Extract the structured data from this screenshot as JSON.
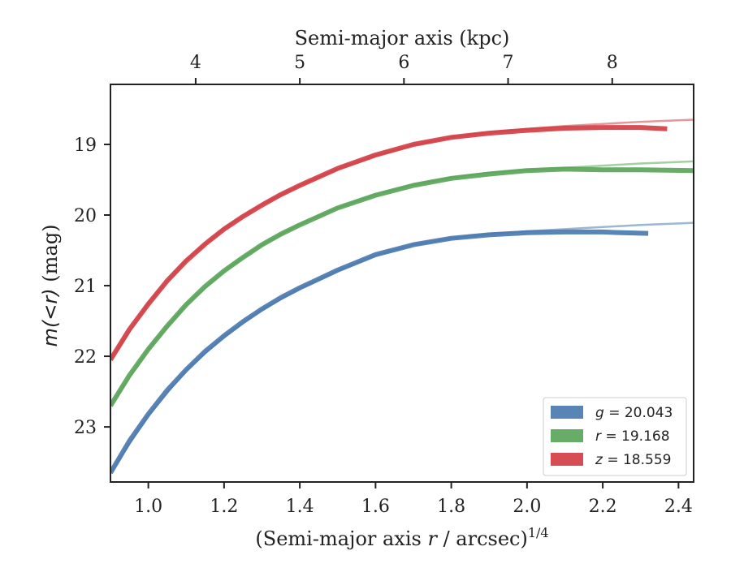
{
  "chart_data": {
    "type": "line",
    "title": "",
    "xlabel": "(Semi-major axis r / arcsec)^1/4",
    "xlabel_parts": {
      "pre": "(Semi-major axis ",
      "var": "r",
      "post": " / arcsec)",
      "exp": "1/4"
    },
    "ylabel": "m(<r) (mag)",
    "ylabel_parts": {
      "var": "m(<r)",
      "post": " (mag)"
    },
    "top_xlabel": "Semi-major axis (kpc)",
    "xlim": [
      0.9,
      2.44
    ],
    "ylim": [
      23.78,
      18.15
    ],
    "y_inverted": true,
    "x_ticks": [
      "1.0",
      "1.2",
      "1.4",
      "1.6",
      "1.8",
      "2.0",
      "2.2",
      "2.4"
    ],
    "y_ticks": [
      "19",
      "20",
      "21",
      "22",
      "23"
    ],
    "top_ticks": [
      "4",
      "5",
      "6",
      "7",
      "8"
    ],
    "top_tick_positions_x": [
      1.125,
      1.4,
      1.675,
      1.95,
      2.225
    ],
    "grid": false,
    "legend_position": "lower-right",
    "series": [
      {
        "name": "g = 20.043",
        "band": "g",
        "total": "20.043",
        "color": "#4a7ab0",
        "data_x": [
          0.9,
          0.95,
          1.0,
          1.05,
          1.1,
          1.15,
          1.2,
          1.25,
          1.3,
          1.35,
          1.4,
          1.5,
          1.6,
          1.7,
          1.8,
          1.9,
          2.0,
          2.1,
          2.2,
          2.25,
          2.32
        ],
        "data_y": [
          23.65,
          23.2,
          22.82,
          22.48,
          22.19,
          21.93,
          21.71,
          21.51,
          21.33,
          21.17,
          21.03,
          20.78,
          20.56,
          20.42,
          20.33,
          20.28,
          20.25,
          20.24,
          20.24,
          20.25,
          20.26
        ],
        "model_x": [
          0.9,
          1.0,
          1.1,
          1.2,
          1.3,
          1.4,
          1.5,
          1.6,
          1.7,
          1.8,
          1.9,
          2.0,
          2.1,
          2.2,
          2.3,
          2.44
        ],
        "model_y": [
          23.65,
          22.84,
          22.2,
          21.72,
          21.34,
          21.04,
          20.79,
          20.57,
          20.42,
          20.33,
          20.27,
          20.23,
          20.2,
          20.17,
          20.14,
          20.11
        ]
      },
      {
        "name": "r = 19.168",
        "band": "r",
        "total": "19.168",
        "color": "#5aa55a",
        "data_x": [
          0.9,
          0.95,
          1.0,
          1.05,
          1.1,
          1.15,
          1.2,
          1.25,
          1.3,
          1.35,
          1.4,
          1.5,
          1.6,
          1.7,
          1.8,
          1.9,
          2.0,
          2.1,
          2.2,
          2.3,
          2.44
        ],
        "data_y": [
          22.7,
          22.27,
          21.9,
          21.57,
          21.27,
          21.01,
          20.79,
          20.6,
          20.42,
          20.27,
          20.14,
          19.9,
          19.72,
          19.58,
          19.48,
          19.42,
          19.37,
          19.35,
          19.36,
          19.36,
          19.37
        ],
        "model_x": [
          0.9,
          1.0,
          1.1,
          1.2,
          1.3,
          1.4,
          1.5,
          1.6,
          1.7,
          1.8,
          1.9,
          2.0,
          2.1,
          2.2,
          2.3,
          2.44
        ],
        "model_y": [
          22.7,
          21.9,
          21.27,
          20.79,
          20.42,
          20.13,
          19.9,
          19.71,
          19.57,
          19.47,
          19.4,
          19.36,
          19.33,
          19.3,
          19.27,
          19.24
        ]
      },
      {
        "name": "z = 18.559",
        "band": "z",
        "total": "18.559",
        "color": "#d23f45",
        "data_x": [
          0.9,
          0.95,
          1.0,
          1.05,
          1.1,
          1.15,
          1.2,
          1.25,
          1.3,
          1.35,
          1.4,
          1.5,
          1.6,
          1.7,
          1.8,
          1.9,
          2.0,
          2.1,
          2.2,
          2.3,
          2.37
        ],
        "data_y": [
          22.05,
          21.62,
          21.26,
          20.93,
          20.65,
          20.41,
          20.2,
          20.02,
          19.86,
          19.71,
          19.58,
          19.34,
          19.15,
          19.0,
          18.9,
          18.84,
          18.8,
          18.77,
          18.76,
          18.76,
          18.78
        ],
        "model_x": [
          0.9,
          1.0,
          1.1,
          1.2,
          1.3,
          1.4,
          1.5,
          1.6,
          1.7,
          1.8,
          1.9,
          2.0,
          2.1,
          2.2,
          2.3,
          2.44
        ],
        "model_y": [
          22.05,
          21.25,
          20.64,
          20.19,
          19.85,
          19.58,
          19.35,
          19.16,
          19.01,
          18.9,
          18.83,
          18.78,
          18.74,
          18.71,
          18.68,
          18.65
        ]
      }
    ]
  }
}
